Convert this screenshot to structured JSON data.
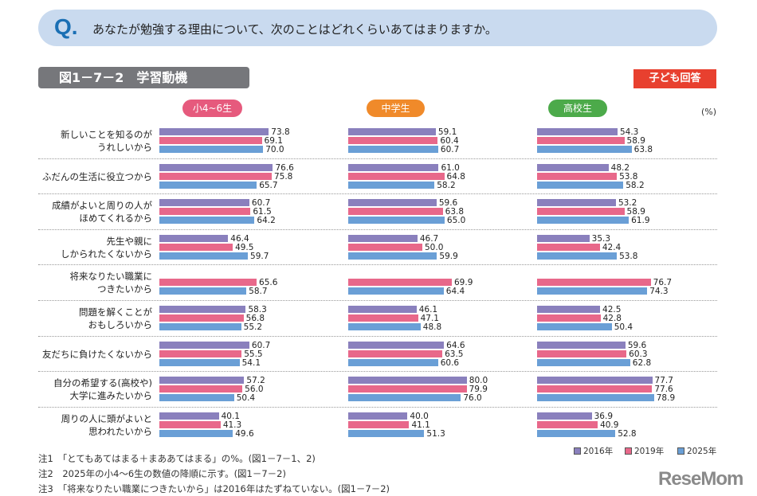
{
  "question": {
    "mark": "Q.",
    "text": "あなたが勉強する理由について、次のことはどれくらいあてはまりますか。"
  },
  "figure_title": "図1－7－2　学習動機",
  "respondent_badge": "子ども回答",
  "unit": "(%)",
  "chart_data": {
    "type": "bar",
    "orientation": "horizontal",
    "panels": [
      {
        "name": "小4~6生",
        "color": "#e65a7d"
      },
      {
        "name": "中学生",
        "color": "#f08a2a"
      },
      {
        "name": "高校生",
        "color": "#4caa4a"
      }
    ],
    "categories": [
      [
        "新しいことを知るのが",
        "うれしいから"
      ],
      [
        "ふだんの生活に役立つから"
      ],
      [
        "成績がよいと周りの人が",
        "ほめてくれるから"
      ],
      [
        "先生や親に",
        "しかられたくないから"
      ],
      [
        "将来なりたい職業に",
        "つきたいから"
      ],
      [
        "問題を解くことが",
        "おもしろいから"
      ],
      [
        "友だちに負けたくないから"
      ],
      [
        "自分の希望する(高校や)",
        "大学に進みたいから"
      ],
      [
        "周りの人に頭がよいと",
        "思われたいから"
      ]
    ],
    "series": [
      {
        "name": "2016年",
        "color": "#8a80bd",
        "values": [
          [
            73.8,
            59.1,
            54.3
          ],
          [
            76.6,
            61.0,
            48.2
          ],
          [
            60.7,
            59.6,
            53.2
          ],
          [
            46.4,
            46.7,
            35.3
          ],
          [
            null,
            null,
            null
          ],
          [
            58.3,
            46.1,
            42.5
          ],
          [
            60.7,
            64.6,
            59.6
          ],
          [
            57.2,
            80.0,
            77.7
          ],
          [
            40.1,
            40.0,
            36.9
          ]
        ]
      },
      {
        "name": "2019年",
        "color": "#e8688a",
        "values": [
          [
            69.1,
            60.4,
            58.9
          ],
          [
            75.8,
            64.8,
            53.8
          ],
          [
            61.5,
            63.8,
            58.9
          ],
          [
            49.5,
            50.0,
            42.4
          ],
          [
            65.6,
            69.9,
            76.7
          ],
          [
            56.8,
            47.1,
            42.8
          ],
          [
            55.5,
            63.5,
            60.3
          ],
          [
            56.0,
            79.9,
            77.6
          ],
          [
            41.3,
            41.1,
            40.9
          ]
        ]
      },
      {
        "name": "2025年",
        "color": "#6a9fd6",
        "values": [
          [
            70.0,
            60.7,
            63.8
          ],
          [
            65.7,
            58.2,
            58.2
          ],
          [
            64.2,
            65.0,
            61.9
          ],
          [
            59.7,
            59.9,
            53.8
          ],
          [
            58.7,
            64.4,
            74.3
          ],
          [
            55.2,
            48.8,
            50.4
          ],
          [
            54.1,
            60.6,
            62.8
          ],
          [
            50.4,
            76.0,
            78.9
          ],
          [
            49.6,
            51.3,
            52.8
          ]
        ]
      }
    ],
    "legend": "bottom-right"
  },
  "notes": [
    "注1　「とてもあてはまる＋まああてはまる」の%。(図1－7－1、2)",
    "注2　2025年の小4～6生の数値の降順に示す。(図1－7－2)",
    "注3　「将来なりたい職業につきたいから」は2016年はたずねていない。(図1－7－2)"
  ],
  "logo": "ReseMom"
}
